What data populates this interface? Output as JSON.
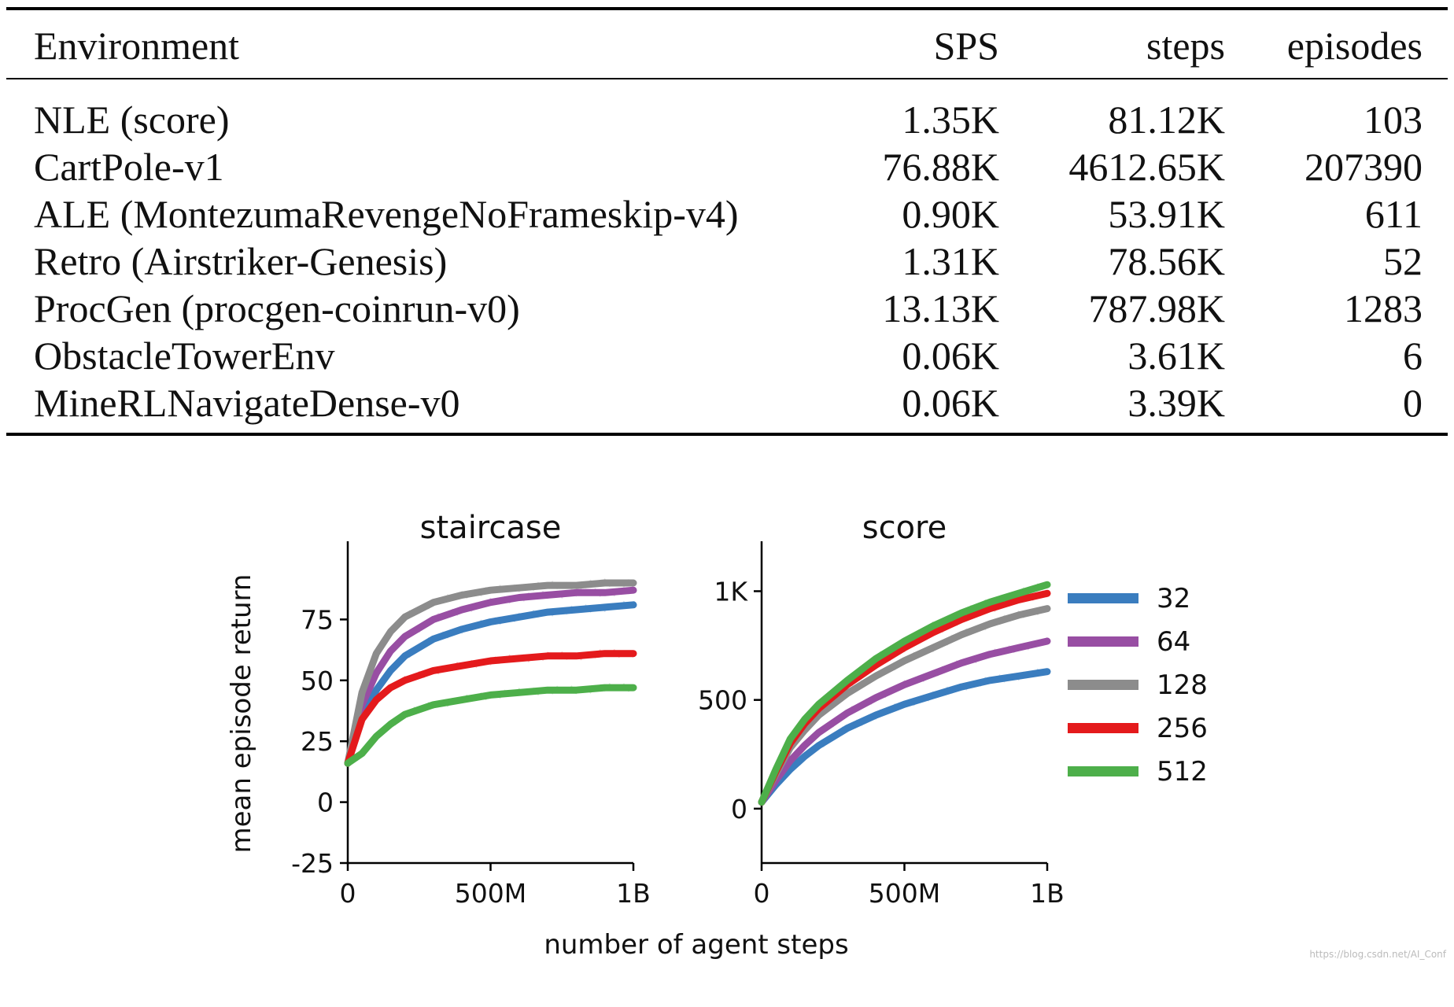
{
  "table": {
    "headers": {
      "environment": "Environment",
      "sps": "SPS",
      "steps": "steps",
      "episodes": "episodes"
    },
    "rows": [
      {
        "environment": "NLE (score)",
        "sps": "1.35K",
        "steps": "81.12K",
        "episodes": "103"
      },
      {
        "environment": "CartPole-v1",
        "sps": "76.88K",
        "steps": "4612.65K",
        "episodes": "207390"
      },
      {
        "environment": "ALE (MontezumaRevengeNoFrameskip-v4)",
        "sps": "0.90K",
        "steps": "53.91K",
        "episodes": "611"
      },
      {
        "environment": "Retro (Airstriker-Genesis)",
        "sps": "1.31K",
        "steps": "78.56K",
        "episodes": "52"
      },
      {
        "environment": "ProcGen (procgen-coinrun-v0)",
        "sps": "13.13K",
        "steps": "787.98K",
        "episodes": "1283"
      },
      {
        "environment": "ObstacleTowerEnv",
        "sps": "0.06K",
        "steps": "3.61K",
        "episodes": "6"
      },
      {
        "environment": "MineRLNavigateDense-v0",
        "sps": "0.06K",
        "steps": "3.39K",
        "episodes": "0"
      }
    ]
  },
  "figure": {
    "shared_xlabel": "number of agent steps",
    "shared_ylabel": "mean episode return"
  },
  "chart_data": [
    {
      "type": "line",
      "title": "staircase",
      "xlabel": "number of agent steps",
      "ylabel": "mean episode return",
      "xlim": [
        0,
        1000
      ],
      "ylim": [
        -25,
        100
      ],
      "x_ticks": [
        0,
        500,
        1000
      ],
      "x_tick_labels": [
        "0",
        "500M",
        "1B"
      ],
      "y_ticks": [
        -25,
        0,
        25,
        50,
        75
      ],
      "y_tick_labels": [
        "-25",
        "0",
        "25",
        "50",
        "75"
      ],
      "x": [
        0,
        50,
        100,
        150,
        200,
        300,
        400,
        500,
        600,
        700,
        800,
        900,
        1000
      ],
      "series": [
        {
          "name": "32",
          "color": "#3a7dbf",
          "values": [
            16,
            35,
            46,
            54,
            60,
            67,
            71,
            74,
            76,
            78,
            79,
            80,
            81
          ]
        },
        {
          "name": "64",
          "color": "#984ea3",
          "values": [
            16,
            40,
            53,
            62,
            68,
            75,
            79,
            82,
            84,
            85,
            86,
            86,
            87
          ]
        },
        {
          "name": "128",
          "color": "#8c8c8c",
          "values": [
            16,
            45,
            61,
            70,
            76,
            82,
            85,
            87,
            88,
            89,
            89,
            90,
            90
          ]
        },
        {
          "name": "256",
          "color": "#e41a1c",
          "values": [
            16,
            34,
            42,
            47,
            50,
            54,
            56,
            58,
            59,
            60,
            60,
            61,
            61
          ]
        },
        {
          "name": "512",
          "color": "#4daf4a",
          "values": [
            16,
            20,
            27,
            32,
            36,
            40,
            42,
            44,
            45,
            46,
            46,
            47,
            47
          ]
        }
      ]
    },
    {
      "type": "line",
      "title": "score",
      "xlabel": "number of agent steps",
      "ylabel": "mean episode return",
      "xlim": [
        0,
        1000
      ],
      "ylim": [
        -250,
        1150
      ],
      "x_ticks": [
        0,
        500,
        1000
      ],
      "x_tick_labels": [
        "0",
        "500M",
        "1B"
      ],
      "y_ticks": [
        0,
        500,
        1000
      ],
      "y_tick_labels": [
        "0",
        "500",
        "1K"
      ],
      "x": [
        0,
        50,
        100,
        150,
        200,
        300,
        400,
        500,
        600,
        700,
        800,
        900,
        1000
      ],
      "series": [
        {
          "name": "32",
          "color": "#3a7dbf",
          "values": [
            30,
            110,
            180,
            240,
            290,
            370,
            430,
            480,
            520,
            560,
            590,
            610,
            630
          ]
        },
        {
          "name": "64",
          "color": "#984ea3",
          "values": [
            30,
            130,
            220,
            290,
            350,
            440,
            510,
            570,
            620,
            670,
            710,
            740,
            770
          ]
        },
        {
          "name": "128",
          "color": "#8c8c8c",
          "values": [
            30,
            160,
            280,
            360,
            430,
            530,
            610,
            680,
            740,
            800,
            850,
            890,
            920
          ]
        },
        {
          "name": "256",
          "color": "#e41a1c",
          "values": [
            30,
            170,
            300,
            390,
            460,
            570,
            660,
            740,
            810,
            870,
            920,
            960,
            990
          ]
        },
        {
          "name": "512",
          "color": "#4daf4a",
          "values": [
            30,
            180,
            320,
            410,
            480,
            590,
            690,
            770,
            840,
            900,
            950,
            990,
            1030
          ]
        }
      ]
    }
  ],
  "legend": {
    "items": [
      {
        "label": "32",
        "color": "#3a7dbf"
      },
      {
        "label": "64",
        "color": "#984ea3"
      },
      {
        "label": "128",
        "color": "#8c8c8c"
      },
      {
        "label": "256",
        "color": "#e41a1c"
      },
      {
        "label": "512",
        "color": "#4daf4a"
      }
    ]
  },
  "watermark": "https://blog.csdn.net/AI_Conf"
}
